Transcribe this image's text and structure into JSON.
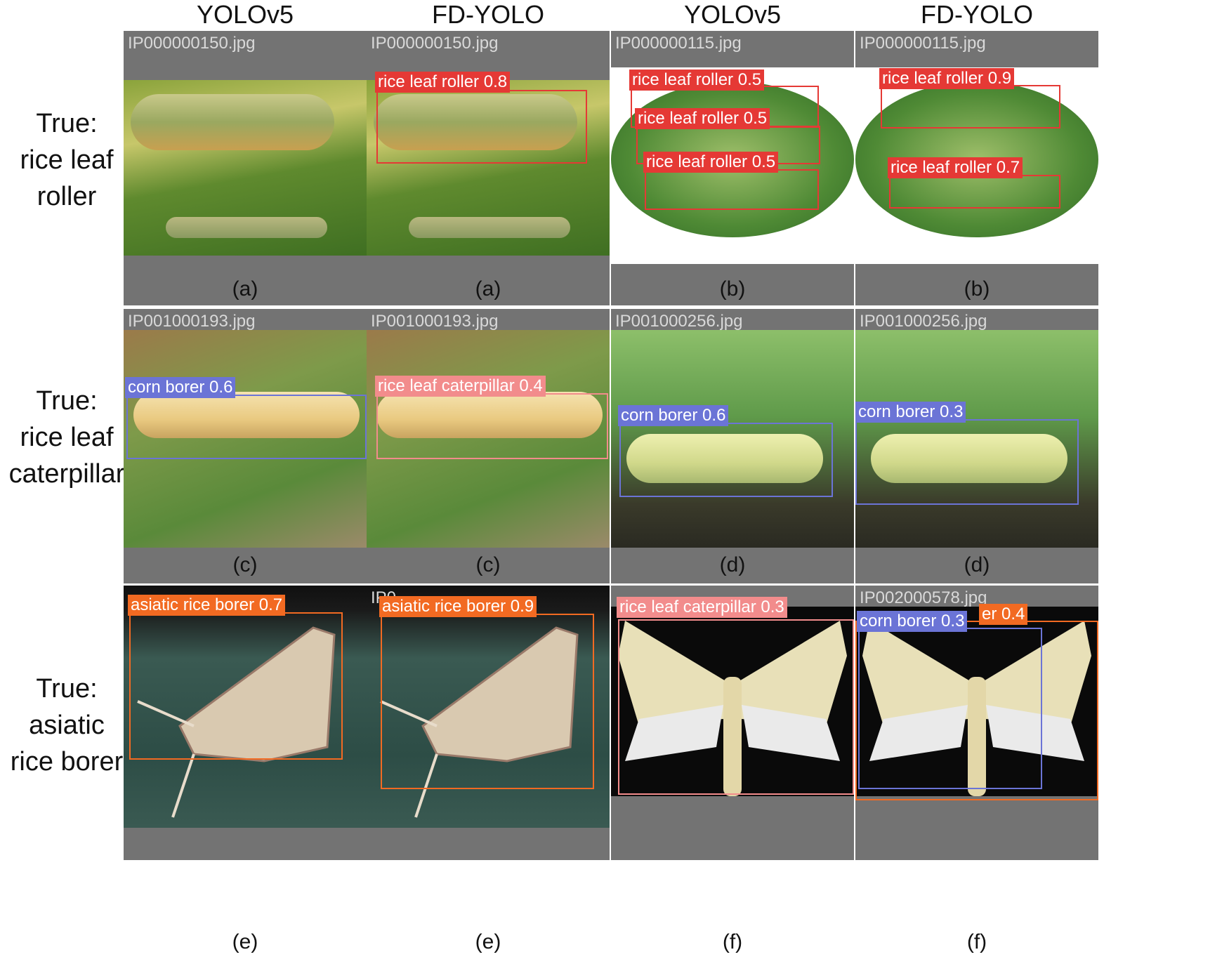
{
  "columns": [
    "YOLOv5",
    "FD-YOLO",
    "YOLOv5",
    "FD-YOLO"
  ],
  "rows": [
    {
      "label_line1": "True:",
      "label_line2": "rice leaf",
      "label_line3": "roller"
    },
    {
      "label_line1": "True:",
      "label_line2": "rice leaf",
      "label_line3": "caterpillar"
    },
    {
      "label_line1": "True:",
      "label_line2": "asiatic",
      "label_line3": "rice borer"
    }
  ],
  "panels": [
    {
      "file": "IP000000150.jpg",
      "caption": "(a)",
      "detections": []
    },
    {
      "file": "IP000000150.jpg",
      "caption": "(a)",
      "detections": [
        {
          "label": "rice leaf roller 0.8",
          "color": "#e53935"
        }
      ]
    },
    {
      "file": "IP000000115.jpg",
      "caption": "(b)",
      "detections": [
        {
          "label": "rice leaf roller 0.5",
          "color": "#e53935"
        },
        {
          "label": "rice leaf roller 0.5",
          "color": "#e53935"
        },
        {
          "label": "rice leaf roller 0.5",
          "color": "#e53935"
        }
      ]
    },
    {
      "file": "IP000000115.jpg",
      "caption": "(b)",
      "detections": [
        {
          "label": "rice leaf roller 0.9",
          "color": "#e53935"
        },
        {
          "label": "rice leaf roller 0.7",
          "color": "#e53935"
        }
      ]
    },
    {
      "file": "IP001000193.jpg",
      "caption": "(c)",
      "detections": [
        {
          "label": "corn borer 0.6",
          "color": "#6b74d6"
        }
      ]
    },
    {
      "file": "IP001000193.jpg",
      "caption": "(c)",
      "detections": [
        {
          "label": "rice leaf caterpillar 0.4",
          "color": "#f28c8c"
        }
      ]
    },
    {
      "file": "IP001000256.jpg",
      "caption": "(d)",
      "detections": [
        {
          "label": "corn borer 0.6",
          "color": "#6b74d6"
        }
      ]
    },
    {
      "file": "IP001000256.jpg",
      "caption": "(d)",
      "detections": [
        {
          "label": "corn borer 0.3",
          "color": "#6b74d6"
        }
      ]
    },
    {
      "file": "",
      "caption": "(e)",
      "detections": [
        {
          "label": "asiatic rice borer 0.7",
          "color": "#f26a22"
        }
      ]
    },
    {
      "file": "IP0",
      "caption": "(e)",
      "detections": [
        {
          "label": "asiatic rice borer 0.9",
          "color": "#f26a22"
        }
      ]
    },
    {
      "file": "",
      "caption": "(f)",
      "detections": [
        {
          "label": "rice leaf caterpillar 0.3",
          "color": "#f28c8c"
        }
      ]
    },
    {
      "file": "IP002000578.jpg",
      "caption": "(f)",
      "detections": [
        {
          "label": "er 0.4",
          "color": "#f26a22"
        },
        {
          "label": "corn borer 0.3",
          "color": "#6b74d6"
        }
      ]
    }
  ]
}
